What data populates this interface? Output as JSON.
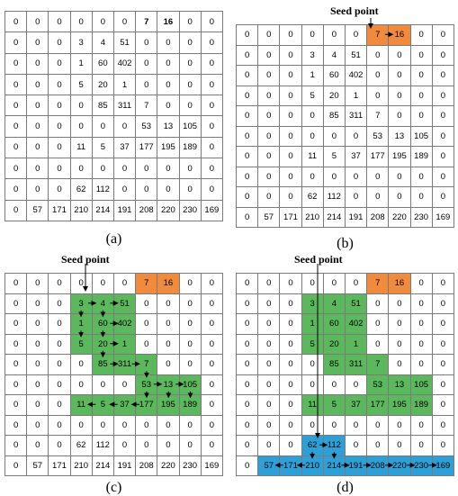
{
  "panels": [
    {
      "id": "a",
      "label": "(a)",
      "seed_label": "",
      "grid": [
        [
          0,
          0,
          0,
          0,
          0,
          0,
          7,
          16,
          0,
          0
        ],
        [
          0,
          0,
          0,
          3,
          4,
          51,
          0,
          0,
          0,
          0
        ],
        [
          0,
          0,
          0,
          1,
          60,
          402,
          0,
          0,
          0,
          0
        ],
        [
          0,
          0,
          0,
          5,
          20,
          1,
          0,
          0,
          0,
          0
        ],
        [
          0,
          0,
          0,
          0,
          85,
          311,
          7,
          0,
          0,
          0
        ],
        [
          0,
          0,
          0,
          0,
          0,
          0,
          53,
          13,
          105,
          0
        ],
        [
          0,
          0,
          0,
          11,
          5,
          37,
          177,
          195,
          189,
          0
        ],
        [
          0,
          0,
          0,
          0,
          0,
          0,
          0,
          0,
          0,
          0
        ],
        [
          0,
          0,
          0,
          62,
          112,
          0,
          0,
          0,
          0,
          0
        ],
        [
          0,
          57,
          171,
          210,
          214,
          191,
          208,
          220,
          230,
          169
        ]
      ],
      "colors": {}
    },
    {
      "id": "b",
      "label": "(b)",
      "seed_label": "Seed point",
      "grid": [
        [
          0,
          0,
          0,
          0,
          0,
          0,
          7,
          16,
          0,
          0
        ],
        [
          0,
          0,
          0,
          3,
          4,
          51,
          0,
          0,
          0,
          0
        ],
        [
          0,
          0,
          0,
          1,
          60,
          402,
          0,
          0,
          0,
          0
        ],
        [
          0,
          0,
          0,
          5,
          20,
          1,
          0,
          0,
          0,
          0
        ],
        [
          0,
          0,
          0,
          0,
          85,
          311,
          7,
          0,
          0,
          0
        ],
        [
          0,
          0,
          0,
          0,
          0,
          0,
          53,
          13,
          105,
          0
        ],
        [
          0,
          0,
          0,
          11,
          5,
          37,
          177,
          195,
          189,
          0
        ],
        [
          0,
          0,
          0,
          0,
          0,
          0,
          0,
          0,
          0,
          0
        ],
        [
          0,
          0,
          0,
          62,
          112,
          0,
          0,
          0,
          0,
          0
        ],
        [
          0,
          57,
          171,
          210,
          214,
          191,
          208,
          220,
          230,
          169
        ]
      ],
      "colors": {
        "orange": "#f08a3c"
      }
    },
    {
      "id": "c",
      "label": "(c)",
      "seed_label": "Seed point",
      "grid": [
        [
          0,
          0,
          0,
          0,
          0,
          0,
          7,
          16,
          0,
          0
        ],
        [
          0,
          0,
          0,
          3,
          4,
          51,
          0,
          0,
          0,
          0
        ],
        [
          0,
          0,
          0,
          1,
          60,
          402,
          0,
          0,
          0,
          0
        ],
        [
          0,
          0,
          0,
          5,
          20,
          1,
          0,
          0,
          0,
          0
        ],
        [
          0,
          0,
          0,
          0,
          85,
          311,
          7,
          0,
          0,
          0
        ],
        [
          0,
          0,
          0,
          0,
          0,
          0,
          53,
          13,
          105,
          0
        ],
        [
          0,
          0,
          0,
          11,
          5,
          37,
          177,
          195,
          189,
          0
        ],
        [
          0,
          0,
          0,
          0,
          0,
          0,
          0,
          0,
          0,
          0
        ],
        [
          0,
          0,
          0,
          62,
          112,
          0,
          0,
          0,
          0,
          0
        ],
        [
          0,
          57,
          171,
          210,
          214,
          191,
          208,
          220,
          230,
          169
        ]
      ],
      "colors": {
        "orange": "#f08a3c",
        "green": "#5cb85c"
      }
    },
    {
      "id": "d",
      "label": "(d)",
      "seed_label": "Seed point",
      "grid": [
        [
          0,
          0,
          0,
          0,
          0,
          0,
          7,
          16,
          0,
          0
        ],
        [
          0,
          0,
          0,
          3,
          4,
          51,
          0,
          0,
          0,
          0
        ],
        [
          0,
          0,
          0,
          1,
          60,
          402,
          0,
          0,
          0,
          0
        ],
        [
          0,
          0,
          0,
          5,
          20,
          1,
          0,
          0,
          0,
          0
        ],
        [
          0,
          0,
          0,
          0,
          85,
          311,
          7,
          0,
          0,
          0
        ],
        [
          0,
          0,
          0,
          0,
          0,
          0,
          53,
          13,
          105,
          0
        ],
        [
          0,
          0,
          0,
          11,
          5,
          37,
          177,
          195,
          189,
          0
        ],
        [
          0,
          0,
          0,
          0,
          0,
          0,
          0,
          0,
          0,
          0
        ],
        [
          0,
          0,
          0,
          62,
          112,
          0,
          0,
          0,
          0,
          0
        ],
        [
          0,
          57,
          171,
          210,
          214,
          191,
          208,
          220,
          230,
          169
        ]
      ],
      "colors": {
        "orange": "#f08a3c",
        "green": "#5cb85c",
        "blue": "#2ea0d8"
      }
    }
  ]
}
